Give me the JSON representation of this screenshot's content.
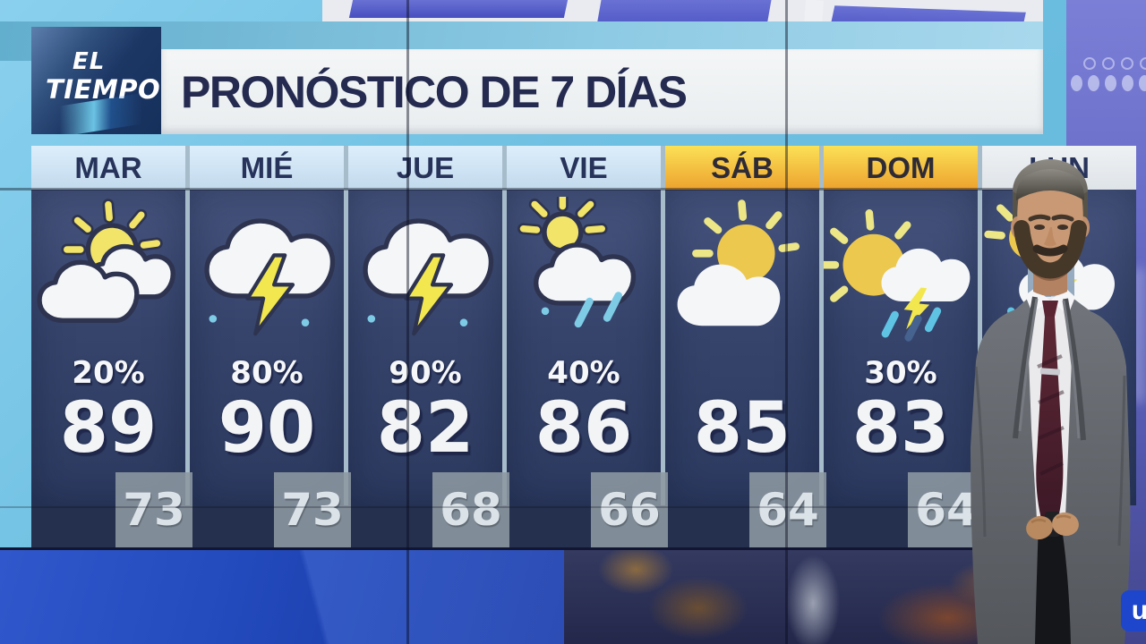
{
  "program": {
    "logo_line1": "EL",
    "logo_line2": "TIEMPO"
  },
  "title": "PRONÓSTICO DE 7 DÍAS",
  "forecast_days": [
    {
      "day": "MAR",
      "icon": "sun-behind-clouds",
      "precip_chance": "20%",
      "high": "89",
      "low": "73",
      "header_style": "blue"
    },
    {
      "day": "MIÉ",
      "icon": "thunderstorm",
      "precip_chance": "80%",
      "high": "90",
      "low": "73",
      "header_style": "blue"
    },
    {
      "day": "JUE",
      "icon": "thunderstorm",
      "precip_chance": "90%",
      "high": "82",
      "low": "68",
      "header_style": "blue"
    },
    {
      "day": "VIE",
      "icon": "sun-cloud-rain",
      "precip_chance": "40%",
      "high": "86",
      "low": "66",
      "header_style": "blue"
    },
    {
      "day": "SÁB",
      "icon": "sun-and-cloud",
      "precip_chance": null,
      "high": "85",
      "low": "64",
      "header_style": "yellow"
    },
    {
      "day": "DOM",
      "icon": "sun-cloud-thunder-rain",
      "precip_chance": "30%",
      "high": "83",
      "low": "64",
      "header_style": "yellow"
    },
    {
      "day": "LUN",
      "icon": "sun-cloud-thunder",
      "precip_chance": null,
      "high": null,
      "low": null,
      "header_style": "light",
      "partially_covered_by_presenter": true
    }
  ],
  "watermark": "u",
  "colors": {
    "header_yellow_top": "#fbe156",
    "header_yellow_bottom": "#eda22f",
    "header_blue": "#cfe4f2",
    "column_navy": "#36446c",
    "title_navy": "#252b50",
    "sun_yellow": "#f2e468",
    "bolt_yellow": "#f2e74e",
    "rain_blue": "#7ecbe6",
    "low_box_gray": "#8d98a2",
    "wall_purple": "#6a6ec8",
    "band_blue": "#234bbd"
  },
  "chart_data": {
    "type": "table",
    "title": "PRONÓSTICO DE 7 DÍAS",
    "categories": [
      "MAR",
      "MIÉ",
      "JUE",
      "VIE",
      "SÁB",
      "DOM",
      "LUN"
    ],
    "precip_chance": [
      "20%",
      "80%",
      "90%",
      "40%",
      null,
      "30%",
      null
    ],
    "high_f": [
      89,
      90,
      82,
      86,
      85,
      83,
      null
    ],
    "low_f": [
      73,
      73,
      68,
      66,
      64,
      64,
      null
    ]
  }
}
